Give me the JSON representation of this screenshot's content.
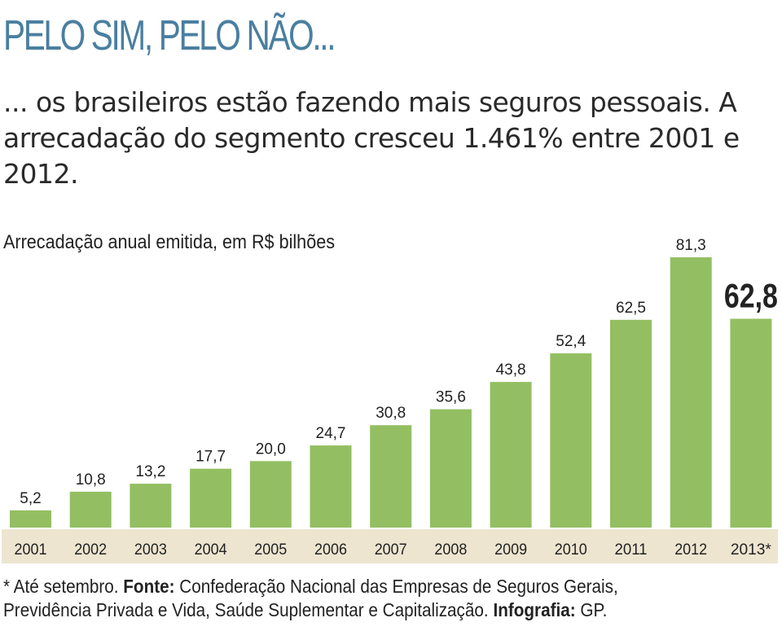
{
  "colors": {
    "title": "#4a7fa0",
    "bar": "#93bf62",
    "axis_band": "#eee5d0",
    "text": "#222222"
  },
  "chart_data": {
    "type": "bar",
    "title": "PELO SIM, PELO NÃO...",
    "subtitle": "... os brasileiros estão fazendo mais seguros pessoais. A arrecadação do segmento cresceu 1.461% entre 2001 e 2012.",
    "ylabel": "Arrecadação anual emitida, em R$ bilhões",
    "xlabel": "",
    "categories": [
      "2001",
      "2002",
      "2003",
      "2004",
      "2005",
      "2006",
      "2007",
      "2008",
      "2009",
      "2010",
      "2011",
      "2012",
      "2013*"
    ],
    "values": [
      5.2,
      10.8,
      13.2,
      17.7,
      20.0,
      24.7,
      30.8,
      35.6,
      43.8,
      52.4,
      62.5,
      81.3,
      62.8
    ],
    "value_labels": [
      "5,2",
      "10,8",
      "13,2",
      "17,7",
      "20,0",
      "24,7",
      "30,8",
      "35,6",
      "43,8",
      "52,4",
      "62,5",
      "81,3",
      "62,8"
    ],
    "highlight_index": 12,
    "ylim": [
      0,
      81.3
    ],
    "grid": false,
    "legend": "none"
  },
  "footnote": {
    "note": "* Até setembro.",
    "source_label": "Fonte:",
    "source_text": "Confederação Nacional das Empresas de Seguros Gerais,",
    "source_text_2": "Previdência Privada e Vida, Saúde Suplementar e Capitalização.",
    "credit_label": "Infografia:",
    "credit_text": "GP."
  }
}
